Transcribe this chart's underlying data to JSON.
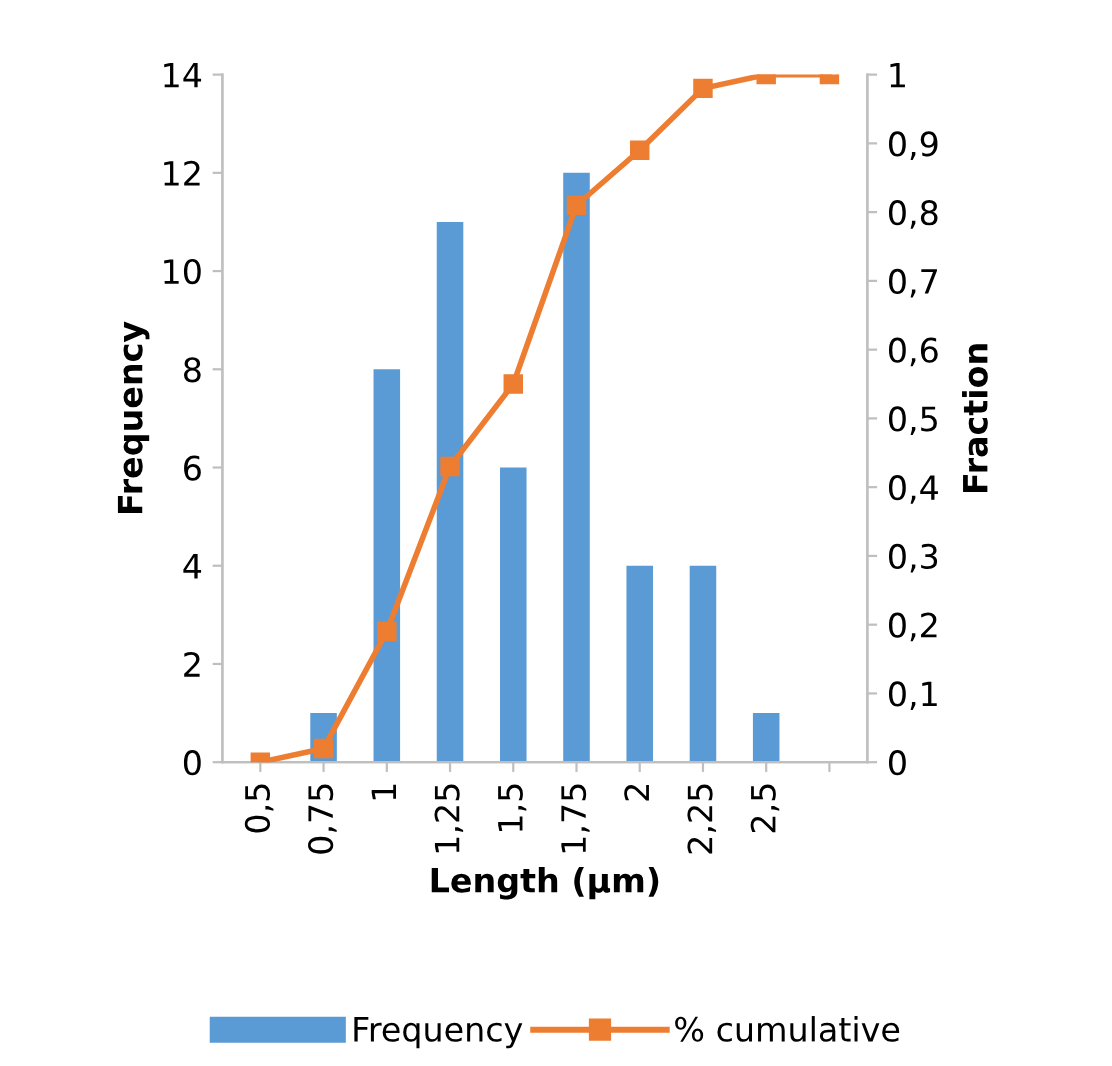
{
  "chart_data": {
    "type": "bar",
    "xlabel": "Length (µm)",
    "ylabel": "Frequency",
    "y2label": "Fraction",
    "categories": [
      "0,5",
      "0,75",
      "1",
      "1,25",
      "1,5",
      "1,75",
      "2",
      "2,25",
      "2,5",
      null
    ],
    "series": [
      {
        "name": "Frequency",
        "color": "#5b9bd5",
        "values": [
          0,
          1,
          8,
          11,
          6,
          12,
          4,
          4,
          1,
          0
        ]
      },
      {
        "name": "% cumulative",
        "type": "line",
        "axis": "y2",
        "color": "#ed7d31",
        "marker": "square",
        "values": [
          0,
          0.02,
          0.19,
          0.43,
          0.55,
          0.81,
          0.89,
          0.98,
          1,
          1
        ]
      }
    ],
    "ylim": [
      0,
      14
    ],
    "yticks": [
      0,
      2,
      4,
      6,
      8,
      10,
      12,
      14
    ],
    "y2lim": [
      0,
      1
    ],
    "y2ticks": [
      0,
      {
        "value": 0.1,
        "label": "0,1"
      },
      {
        "value": 0.2,
        "label": "0,2"
      },
      {
        "value": 0.3,
        "label": "0,3"
      },
      {
        "value": 0.4,
        "label": "0,4"
      },
      {
        "value": 0.5,
        "label": "0,5"
      },
      {
        "value": 0.6,
        "label": "0,6"
      },
      {
        "value": 0.7,
        "label": "0,7"
      },
      {
        "value": 0.8,
        "label": "0,8"
      },
      {
        "value": 0.9,
        "label": "0,9"
      },
      1
    ],
    "grid": false,
    "legend": "bottom"
  }
}
